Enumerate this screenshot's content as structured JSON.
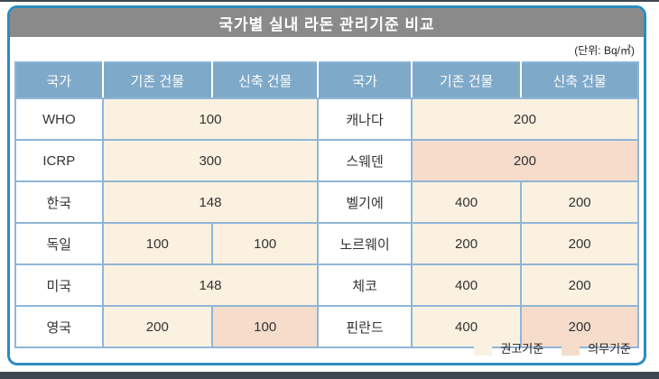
{
  "title": "국가별 실내 라돈 관리기준 비교",
  "unit_label": "(단위: Bq/㎥)",
  "table": {
    "headers": [
      "국가",
      "기존 건물",
      "신축 건물",
      "국가",
      "기존 건물",
      "신축 건물"
    ],
    "rows": [
      {
        "cells": [
          {
            "text": "WHO",
            "kind": "country"
          },
          {
            "text": "100",
            "kind": "recommended",
            "span": 2
          },
          {
            "text": "캐나다",
            "kind": "country"
          },
          {
            "text": "200",
            "kind": "recommended",
            "span": 2
          }
        ]
      },
      {
        "cells": [
          {
            "text": "ICRP",
            "kind": "country"
          },
          {
            "text": "300",
            "kind": "recommended",
            "span": 2
          },
          {
            "text": "스웨덴",
            "kind": "country"
          },
          {
            "text": "200",
            "kind": "mandatory",
            "span": 2
          }
        ]
      },
      {
        "cells": [
          {
            "text": "한국",
            "kind": "country"
          },
          {
            "text": "148",
            "kind": "recommended",
            "span": 2
          },
          {
            "text": "벨기에",
            "kind": "country"
          },
          {
            "text": "400",
            "kind": "recommended"
          },
          {
            "text": "200",
            "kind": "recommended"
          }
        ]
      },
      {
        "cells": [
          {
            "text": "독일",
            "kind": "country"
          },
          {
            "text": "100",
            "kind": "recommended"
          },
          {
            "text": "100",
            "kind": "recommended"
          },
          {
            "text": "노르웨이",
            "kind": "country"
          },
          {
            "text": "200",
            "kind": "recommended"
          },
          {
            "text": "200",
            "kind": "recommended"
          }
        ]
      },
      {
        "cells": [
          {
            "text": "미국",
            "kind": "country"
          },
          {
            "text": "148",
            "kind": "recommended",
            "span": 2
          },
          {
            "text": "체코",
            "kind": "country"
          },
          {
            "text": "400",
            "kind": "recommended"
          },
          {
            "text": "200",
            "kind": "recommended"
          }
        ]
      },
      {
        "cells": [
          {
            "text": "영국",
            "kind": "country"
          },
          {
            "text": "200",
            "kind": "recommended"
          },
          {
            "text": "100",
            "kind": "mandatory"
          },
          {
            "text": "핀란드",
            "kind": "country"
          },
          {
            "text": "400",
            "kind": "recommended"
          },
          {
            "text": "200",
            "kind": "mandatory"
          }
        ]
      }
    ]
  },
  "legend": [
    {
      "label": "권고기준",
      "color": "#fbf1e1"
    },
    {
      "label": "의무기준",
      "color": "#f5dccb"
    }
  ],
  "colors": {
    "frame_border": "#2b8cbf",
    "title_bar_bg": "#8a8a8a",
    "header_bg": "#7fa9c9",
    "grid_line": "#8fb6d6",
    "recommended_bg": "#fbf1e1",
    "mandatory_bg": "#f5dccb",
    "edge_strip": "#3f4751"
  },
  "chart_data": {
    "type": "table",
    "title": "국가별 실내 라돈 관리기준 비교",
    "unit": "Bq/㎥",
    "columns": [
      "국가",
      "기존 건물",
      "신축 건물"
    ],
    "legend": [
      "권고기준",
      "의무기준"
    ],
    "rows": [
      {
        "country": "WHO",
        "existing": 100,
        "new": 100,
        "merged": true,
        "existing_standard": "권고기준",
        "new_standard": "권고기준"
      },
      {
        "country": "ICRP",
        "existing": 300,
        "new": 300,
        "merged": true,
        "existing_standard": "권고기준",
        "new_standard": "권고기준"
      },
      {
        "country": "한국",
        "existing": 148,
        "new": 148,
        "merged": true,
        "existing_standard": "권고기준",
        "new_standard": "권고기준"
      },
      {
        "country": "독일",
        "existing": 100,
        "new": 100,
        "merged": false,
        "existing_standard": "권고기준",
        "new_standard": "권고기준"
      },
      {
        "country": "미국",
        "existing": 148,
        "new": 148,
        "merged": true,
        "existing_standard": "권고기준",
        "new_standard": "권고기준"
      },
      {
        "country": "영국",
        "existing": 200,
        "new": 100,
        "merged": false,
        "existing_standard": "권고기준",
        "new_standard": "의무기준"
      },
      {
        "country": "캐나다",
        "existing": 200,
        "new": 200,
        "merged": true,
        "existing_standard": "권고기준",
        "new_standard": "권고기준"
      },
      {
        "country": "스웨덴",
        "existing": 200,
        "new": 200,
        "merged": true,
        "existing_standard": "의무기준",
        "new_standard": "의무기준"
      },
      {
        "country": "벨기에",
        "existing": 400,
        "new": 200,
        "merged": false,
        "existing_standard": "권고기준",
        "new_standard": "권고기준"
      },
      {
        "country": "노르웨이",
        "existing": 200,
        "new": 200,
        "merged": false,
        "existing_standard": "권고기준",
        "new_standard": "권고기준"
      },
      {
        "country": "체코",
        "existing": 400,
        "new": 200,
        "merged": false,
        "existing_standard": "권고기준",
        "new_standard": "권고기준"
      },
      {
        "country": "핀란드",
        "existing": 400,
        "new": 200,
        "merged": false,
        "existing_standard": "권고기준",
        "new_standard": "의무기준"
      }
    ]
  }
}
